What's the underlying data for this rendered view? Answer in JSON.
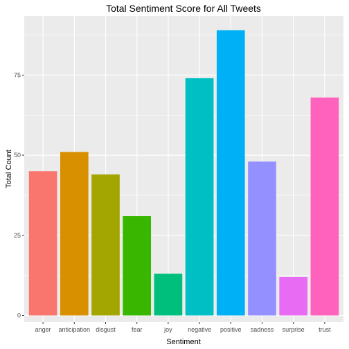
{
  "chart_data": {
    "type": "bar",
    "title": "Total Sentiment Score for All Tweets",
    "xlabel": "Sentiment",
    "ylabel": "Total Count",
    "categories": [
      "anger",
      "anticipation",
      "disgust",
      "fear",
      "joy",
      "negative",
      "positive",
      "sadness",
      "surprise",
      "trust"
    ],
    "values": [
      45,
      51,
      44,
      31,
      13,
      74,
      89,
      48,
      12,
      68
    ],
    "colors": [
      "#F8766D",
      "#D89000",
      "#A3A500",
      "#39B600",
      "#00BF7D",
      "#00BFC4",
      "#00B0F6",
      "#9590FF",
      "#E76BF3",
      "#FF62BC"
    ],
    "ylim": [
      -2.05,
      93.45
    ],
    "y_ticks": [
      0,
      25,
      50,
      75
    ],
    "grid": true,
    "legend": "none",
    "panel_background": "#EBEBEB",
    "grid_color": "#FFFFFF"
  }
}
